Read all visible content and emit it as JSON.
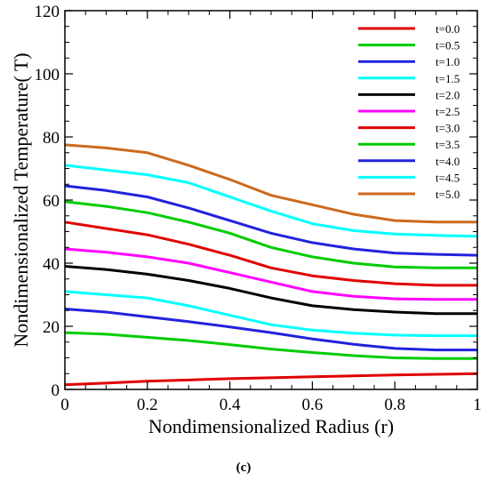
{
  "chart_data": {
    "type": "line",
    "xlabel": "Nondimensionalized Radius (r)",
    "ylabel": "Nondimensionalized Temperature( T)",
    "xlim": [
      0,
      1
    ],
    "ylim": [
      0,
      120
    ],
    "xticks": [
      "0",
      "0.2",
      "0.4",
      "0.6",
      "0.8",
      "1"
    ],
    "yticks": [
      "0",
      "20",
      "40",
      "60",
      "80",
      "100",
      "120"
    ],
    "grid": false,
    "legend_position": "top-right",
    "caption": "(c)",
    "series": [
      {
        "name": "t=0.0",
        "color": "#e00000",
        "x": [
          0,
          0.1,
          0.2,
          0.3,
          0.4,
          0.5,
          0.6,
          0.7,
          0.8,
          0.9,
          1.0
        ],
        "y": [
          1.5,
          2.0,
          2.6,
          3.0,
          3.4,
          3.7,
          4.0,
          4.3,
          4.6,
          4.8,
          5.0
        ]
      },
      {
        "name": "t=0.5",
        "color": "#00cc00",
        "x": [
          0,
          0.1,
          0.2,
          0.3,
          0.4,
          0.5,
          0.6,
          0.7,
          0.8,
          0.9,
          1.0
        ],
        "y": [
          18,
          17.5,
          16.5,
          15.5,
          14.2,
          12.8,
          11.7,
          10.7,
          10.0,
          9.8,
          9.8
        ]
      },
      {
        "name": "t=1.0",
        "color": "#2222dd",
        "x": [
          0,
          0.1,
          0.2,
          0.3,
          0.4,
          0.5,
          0.6,
          0.7,
          0.8,
          0.9,
          1.0
        ],
        "y": [
          25.5,
          24.5,
          23.0,
          21.5,
          19.8,
          18.0,
          16.0,
          14.3,
          13.0,
          12.5,
          12.5
        ]
      },
      {
        "name": "t=1.5",
        "color": "#00ffff",
        "x": [
          0,
          0.1,
          0.2,
          0.3,
          0.4,
          0.5,
          0.6,
          0.7,
          0.8,
          0.9,
          1.0
        ],
        "y": [
          31,
          30,
          29,
          26.5,
          23.5,
          20.5,
          18.8,
          17.8,
          17.2,
          17.0,
          17.0
        ]
      },
      {
        "name": "t=2.0",
        "color": "#000000",
        "x": [
          0,
          0.1,
          0.2,
          0.3,
          0.4,
          0.5,
          0.6,
          0.7,
          0.8,
          0.9,
          1.0
        ],
        "y": [
          39,
          38,
          36.5,
          34.5,
          32,
          29,
          26.5,
          25.3,
          24.5,
          24.0,
          24.0
        ]
      },
      {
        "name": "t=2.5",
        "color": "#ff00ff",
        "x": [
          0,
          0.1,
          0.2,
          0.3,
          0.4,
          0.5,
          0.6,
          0.7,
          0.8,
          0.9,
          1.0
        ],
        "y": [
          44.5,
          43.5,
          42,
          40,
          37,
          34,
          31,
          29.5,
          28.7,
          28.5,
          28.5
        ]
      },
      {
        "name": "t=3.0",
        "color": "#e00000",
        "x": [
          0,
          0.1,
          0.2,
          0.3,
          0.4,
          0.5,
          0.6,
          0.7,
          0.8,
          0.9,
          1.0
        ],
        "y": [
          53,
          51,
          49,
          46,
          42.5,
          38.5,
          36,
          34.5,
          33.5,
          33.0,
          33.0
        ]
      },
      {
        "name": "t=3.5",
        "color": "#00cc00",
        "x": [
          0,
          0.1,
          0.2,
          0.3,
          0.4,
          0.5,
          0.6,
          0.7,
          0.8,
          0.9,
          1.0
        ],
        "y": [
          59.5,
          58,
          56,
          53,
          49.5,
          45,
          42,
          40,
          38.8,
          38.5,
          38.5
        ]
      },
      {
        "name": "t=4.0",
        "color": "#2222dd",
        "x": [
          0,
          0.1,
          0.2,
          0.3,
          0.4,
          0.5,
          0.6,
          0.7,
          0.8,
          0.9,
          1.0
        ],
        "y": [
          64.5,
          63,
          61,
          57.5,
          53.5,
          49.5,
          46.5,
          44.5,
          43.2,
          42.8,
          42.5
        ]
      },
      {
        "name": "t=4.5",
        "color": "#00ffff",
        "x": [
          0,
          0.1,
          0.2,
          0.3,
          0.4,
          0.5,
          0.6,
          0.7,
          0.8,
          0.9,
          1.0
        ],
        "y": [
          71,
          69.5,
          68,
          65.5,
          61,
          56.5,
          52.5,
          50.3,
          49.2,
          48.8,
          48.5
        ]
      },
      {
        "name": "t=5.0",
        "color": "#cc6a1e",
        "x": [
          0,
          0.1,
          0.2,
          0.3,
          0.4,
          0.5,
          0.6,
          0.7,
          0.8,
          0.9,
          1.0
        ],
        "y": [
          77.5,
          76.5,
          75,
          71,
          66.5,
          61.5,
          58.5,
          55.5,
          53.5,
          53.0,
          53.0
        ]
      }
    ]
  }
}
